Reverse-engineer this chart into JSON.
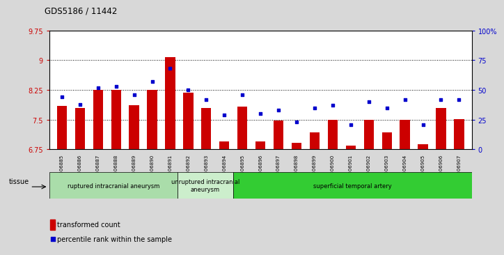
{
  "title": "GDS5186 / 11442",
  "samples": [
    "GSM1306885",
    "GSM1306886",
    "GSM1306887",
    "GSM1306888",
    "GSM1306889",
    "GSM1306890",
    "GSM1306891",
    "GSM1306892",
    "GSM1306893",
    "GSM1306894",
    "GSM1306895",
    "GSM1306896",
    "GSM1306897",
    "GSM1306898",
    "GSM1306899",
    "GSM1306900",
    "GSM1306901",
    "GSM1306902",
    "GSM1306903",
    "GSM1306904",
    "GSM1306905",
    "GSM1306906",
    "GSM1306907"
  ],
  "bar_values": [
    7.85,
    7.8,
    8.25,
    8.25,
    7.87,
    8.25,
    9.07,
    8.18,
    7.8,
    6.95,
    7.83,
    6.95,
    7.48,
    6.92,
    7.18,
    7.5,
    6.85,
    7.5,
    7.18,
    7.5,
    6.88,
    7.8,
    7.52
  ],
  "percentile_values": [
    44,
    38,
    52,
    53,
    46,
    57,
    68,
    50,
    42,
    29,
    46,
    30,
    33,
    23,
    35,
    37,
    21,
    40,
    35,
    42,
    21,
    42,
    42
  ],
  "bar_color": "#cc0000",
  "dot_color": "#0000cc",
  "ylim_left": [
    6.75,
    9.75
  ],
  "ylim_right": [
    0,
    100
  ],
  "yticks_left": [
    6.75,
    7.5,
    8.25,
    9.0,
    9.75
  ],
  "ytick_labels_left": [
    "6.75",
    "7.5",
    "8.25",
    "9",
    "9.75"
  ],
  "yticks_right": [
    0,
    25,
    50,
    75,
    100
  ],
  "ytick_labels_right": [
    "0",
    "25",
    "50",
    "75",
    "100%"
  ],
  "hlines": [
    7.5,
    8.25,
    9.0
  ],
  "groups": [
    {
      "label": "ruptured intracranial aneurysm",
      "start": 0,
      "end": 7,
      "color": "#aaddaa"
    },
    {
      "label": "unruptured intracranial\naneurysm",
      "start": 7,
      "end": 10,
      "color": "#cceecc"
    },
    {
      "label": "superficial temporal artery",
      "start": 10,
      "end": 23,
      "color": "#33cc33"
    }
  ],
  "tissue_label": "tissue",
  "legend_bar_label": "transformed count",
  "legend_dot_label": "percentile rank within the sample",
  "background_color": "#d8d8d8",
  "plot_bg_color": "#ffffff"
}
